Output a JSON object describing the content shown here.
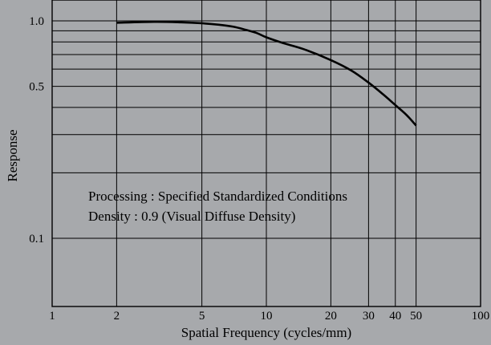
{
  "chart_data": {
    "type": "line",
    "title": "",
    "xlabel": "Spatial Frequency (cycles/mm)",
    "ylabel": "Response",
    "x_scale": "log",
    "y_scale": "log",
    "xlim": [
      1,
      100
    ],
    "ylim": [
      0.05,
      1.2
    ],
    "x_ticks": [
      1,
      2,
      5,
      10,
      20,
      30,
      40,
      50,
      100
    ],
    "x_tick_labels": [
      "1",
      "2",
      "5",
      "10",
      "20",
      "30",
      "40",
      "50",
      "100"
    ],
    "y_ticks": [
      0.1,
      0.5,
      1.0
    ],
    "y_tick_labels": [
      "0.1",
      "0.5",
      "1.0"
    ],
    "x_gridlines": [
      2,
      5,
      10,
      20,
      30,
      40,
      50
    ],
    "y_gridlines": [
      0.1,
      0.2,
      0.3,
      0.4,
      0.5,
      0.6,
      0.7,
      0.8,
      0.9,
      1.0
    ],
    "grid": true,
    "series": [
      {
        "x": [
          2,
          3,
          4,
          5,
          6,
          7,
          8,
          9,
          10,
          12,
          15,
          20,
          25,
          30,
          35,
          40,
          45,
          50
        ],
        "y": [
          0.98,
          0.99,
          0.985,
          0.975,
          0.96,
          0.94,
          0.91,
          0.88,
          0.84,
          0.79,
          0.74,
          0.66,
          0.59,
          0.52,
          0.46,
          0.41,
          0.37,
          0.33
        ]
      }
    ],
    "annotations": [
      "Processing : Specified Standardized Conditions",
      "Density : 0.9 (Visual Diffuse Density)"
    ],
    "colors": {
      "background": "#a7a9ac",
      "line": "#000000",
      "grid": "#000000"
    }
  }
}
